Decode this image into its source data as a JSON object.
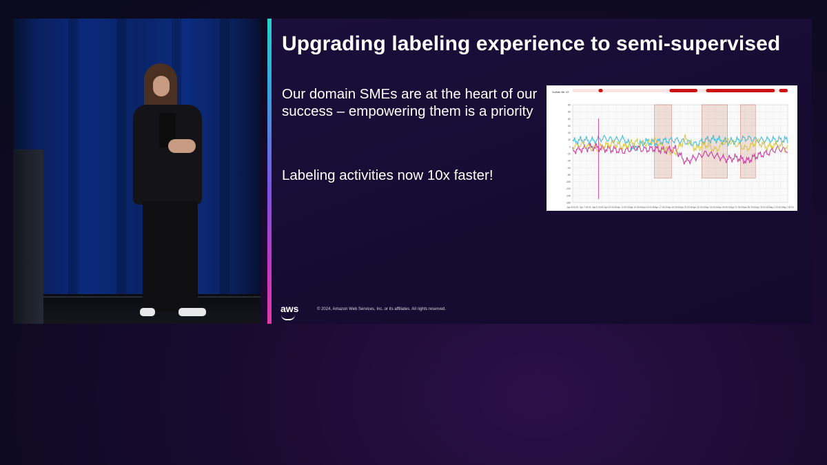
{
  "slide": {
    "title": "Upgrading labeling experience to semi-supervised",
    "paragraph1": "Our domain SMEs are at the heart of our success – empowering them is a priority",
    "paragraph2": "Labeling activities now 10x faster!",
    "logo": "aws",
    "copyright": "© 2024, Amazon Web Services, Inc. or its affiliates. All rights reserved."
  },
  "colors": {
    "accent_top": "#24d3c7",
    "accent_bottom": "#e23aa6",
    "series_cyan": "#2fb8d6",
    "series_magenta": "#c8289a",
    "series_yellow": "#d8c436",
    "marker_red": "#cc1111"
  },
  "chart_data": {
    "type": "line",
    "title": "",
    "header_label": "Sulfide file V2",
    "y_ticks": [
      "80",
      "80",
      "80",
      "60",
      "40",
      "20",
      "0",
      "-20",
      "-40",
      "-60",
      "-80",
      "-100",
      "-120",
      "-140",
      "-160"
    ],
    "x_ticks": [
      "Apr 8 00:00",
      "Apr 7 00:00",
      "Apr 8 00:00",
      "Apr 10 00:00",
      "Apr 12 00:00",
      "Apr 14 00:00",
      "Apr 16 00:00",
      "Apr 17 00:00",
      "Apr 18 00:00",
      "Apr 20 00:00",
      "Apr 22 00:00",
      "Apr 24 00:00",
      "Apr 26 00:00",
      "Apr 27 00:00",
      "Apr 28 00:00",
      "Apr 30 00:00",
      "May 1 00:00",
      "May 2 00:00"
    ],
    "series": [
      {
        "values": [
          0.58,
          0.6,
          0.59,
          0.62,
          0.6,
          0.61,
          0.5,
          0.58,
          0.57,
          0.59,
          0.6,
          0.58,
          0.55,
          0.6,
          0.61,
          0.58,
          0.59,
          0.62,
          0.6,
          0.6,
          0.6,
          0.6
        ]
      },
      {
        "values": [
          0.48,
          0.5,
          0.52,
          0.5,
          0.49,
          0.47,
          0.51,
          0.49,
          0.5,
          0.48,
          0.5,
          0.35,
          0.4,
          0.45,
          0.42,
          0.38,
          0.4,
          0.36,
          0.42,
          0.45,
          0.5,
          0.48
        ]
      },
      {
        "values": [
          0.52,
          0.55,
          0.5,
          0.53,
          0.56,
          0.52,
          0.58,
          0.55,
          0.6,
          0.5,
          0.45,
          0.62,
          0.5,
          0.55,
          0.48,
          0.6,
          0.55,
          0.5,
          0.58,
          0.52,
          0.55,
          0.5
        ]
      }
    ],
    "highlight_regions": [
      [
        0.38,
        0.46
      ],
      [
        0.6,
        0.72
      ],
      [
        0.78,
        0.85
      ]
    ],
    "event_markers": [
      [
        0.12,
        0.14
      ],
      [
        0.45,
        0.58
      ],
      [
        0.62,
        0.94
      ],
      [
        0.96,
        1.0
      ]
    ]
  }
}
